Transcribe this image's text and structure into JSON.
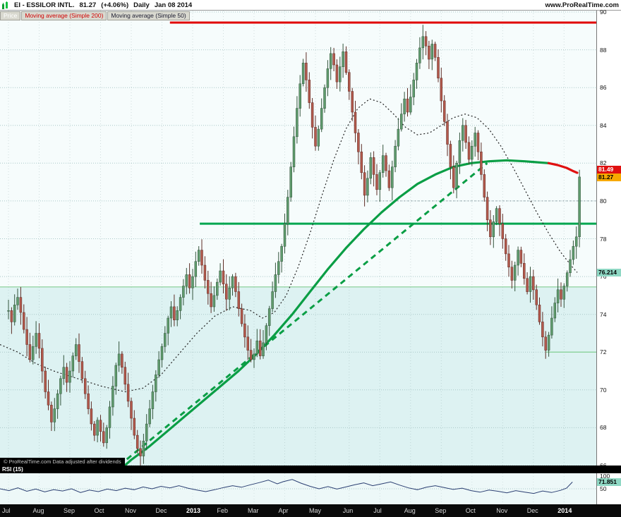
{
  "header": {
    "symbol": "EI - ESSILOR INTL.",
    "price": "81.27",
    "change": "(+4.06%)",
    "timeframe": "Daily",
    "date": "Jan 08 2014",
    "site": "www.ProRealTime.com"
  },
  "legend": {
    "price_label": "Price",
    "ma200_label": "Moving average (Simple 200)",
    "ma50_label": "Moving average (Simple 50)"
  },
  "footer_note": "© ProRealTime.com Data adjusted after dividends",
  "colors": {
    "candle_up": "#5f9b6d",
    "candle_up_stroke": "#33543c",
    "candle_down": "#b2594c",
    "candle_down_stroke": "#5e2d26",
    "ma200_green": "#0a9e45",
    "ma200_red": "#e01010",
    "ma50": "#222222",
    "trend": "#0a9e45",
    "rsi_line": "#2b3f72",
    "plot_bg": "#f6fcfc",
    "zone_bg": "#ddf2f2",
    "grid": "#aac8c8"
  },
  "chart_data": {
    "type": "candlestick",
    "title": "EI - ESSILOR INTL. Daily",
    "y_axis": {
      "min": 66,
      "max": 90,
      "step": 2
    },
    "x_labels": [
      {
        "label": "Jul",
        "i": 0
      },
      {
        "label": "Aug",
        "i": 10
      },
      {
        "label": "Sep",
        "i": 20
      },
      {
        "label": "Oct",
        "i": 30
      },
      {
        "label": "Nov",
        "i": 40
      },
      {
        "label": "Dec",
        "i": 50
      },
      {
        "label": "2013",
        "i": 60
      },
      {
        "label": "Feb",
        "i": 70
      },
      {
        "label": "Mar",
        "i": 80
      },
      {
        "label": "Apr",
        "i": 90
      },
      {
        "label": "May",
        "i": 100
      },
      {
        "label": "Jun",
        "i": 111
      },
      {
        "label": "Jul",
        "i": 121
      },
      {
        "label": "Aug",
        "i": 131
      },
      {
        "label": "Sep",
        "i": 141
      },
      {
        "label": "Oct",
        "i": 151
      },
      {
        "label": "Nov",
        "i": 161
      },
      {
        "label": "Dec",
        "i": 171
      },
      {
        "label": "2014",
        "i": 181
      }
    ],
    "closes": [
      74.2,
      73.6,
      74.5,
      74.9,
      74.1,
      73.2,
      72.4,
      71.6,
      72.3,
      73.0,
      72.2,
      71.0,
      69.9,
      69.2,
      68.3,
      69.0,
      69.8,
      70.6,
      71.2,
      70.4,
      71.0,
      71.8,
      72.4,
      71.5,
      70.6,
      69.8,
      69.0,
      68.2,
      67.6,
      68.4,
      67.8,
      67.2,
      68.0,
      69.1,
      70.2,
      71.3,
      71.9,
      71.2,
      70.3,
      69.4,
      68.5,
      67.6,
      66.9,
      66.5,
      67.3,
      68.2,
      69.0,
      69.9,
      70.8,
      71.6,
      72.3,
      73.0,
      73.8,
      74.4,
      73.7,
      74.2,
      74.9,
      75.5,
      76.1,
      75.4,
      76.0,
      76.8,
      77.4,
      76.6,
      75.8,
      75.1,
      74.4,
      75.0,
      75.7,
      76.3,
      75.6,
      74.8,
      75.4,
      76.0,
      75.2,
      74.3,
      73.5,
      72.8,
      72.1,
      71.6,
      71.9,
      72.6,
      71.8,
      72.5,
      73.4,
      74.3,
      75.2,
      76.1,
      76.8,
      77.6,
      78.8,
      80.2,
      81.8,
      83.4,
      84.9,
      86.2,
      87.3,
      86.4,
      85.2,
      83.9,
      82.9,
      83.8,
      84.9,
      86.0,
      87.0,
      87.8,
      87.2,
      86.3,
      87.1,
      87.9,
      86.8,
      85.8,
      84.7,
      83.6,
      82.6,
      81.5,
      80.3,
      81.2,
      82.3,
      81.4,
      80.6,
      81.5,
      82.4,
      81.6,
      80.7,
      81.8,
      82.9,
      83.8,
      84.6,
      85.4,
      84.7,
      85.5,
      86.4,
      87.3,
      88.1,
      88.7,
      88.2,
      87.5,
      88.3,
      87.6,
      86.5,
      85.3,
      84.2,
      83.0,
      81.8,
      80.7,
      82.0,
      83.2,
      84.0,
      83.1,
      82.2,
      82.9,
      83.6,
      82.6,
      81.4,
      80.2,
      79.0,
      78.1,
      78.9,
      79.6,
      78.8,
      78.0,
      77.2,
      76.5,
      75.8,
      76.6,
      77.4,
      76.7,
      75.9,
      75.2,
      76.0,
      75.3,
      74.5,
      73.6,
      72.8,
      72.1,
      72.9,
      73.8,
      74.6,
      75.3,
      74.8,
      75.5,
      76.2,
      76.9,
      77.6,
      78.1,
      81.27
    ],
    "ma200": {
      "red_from": 0.92,
      "points": [
        [
          0.195,
          65.6
        ],
        [
          0.22,
          66.3
        ],
        [
          0.25,
          67.0
        ],
        [
          0.28,
          67.8
        ],
        [
          0.31,
          68.6
        ],
        [
          0.34,
          69.4
        ],
        [
          0.37,
          70.2
        ],
        [
          0.4,
          71.0
        ],
        [
          0.43,
          71.9
        ],
        [
          0.46,
          72.9
        ],
        [
          0.49,
          74.0
        ],
        [
          0.52,
          75.2
        ],
        [
          0.55,
          76.4
        ],
        [
          0.58,
          77.5
        ],
        [
          0.61,
          78.5
        ],
        [
          0.64,
          79.4
        ],
        [
          0.67,
          80.2
        ],
        [
          0.7,
          80.9
        ],
        [
          0.73,
          81.4
        ],
        [
          0.76,
          81.8
        ],
        [
          0.79,
          82.0
        ],
        [
          0.82,
          82.1
        ],
        [
          0.85,
          82.15
        ],
        [
          0.88,
          82.1
        ],
        [
          0.9,
          82.05
        ],
        [
          0.92,
          82.0
        ],
        [
          0.935,
          81.9
        ],
        [
          0.95,
          81.75
        ],
        [
          0.96,
          81.6
        ],
        [
          0.968,
          81.49
        ]
      ]
    },
    "ma50": {
      "points": [
        [
          0.0,
          72.4
        ],
        [
          0.03,
          72.0
        ],
        [
          0.06,
          71.4
        ],
        [
          0.09,
          71.0
        ],
        [
          0.13,
          70.6
        ],
        [
          0.17,
          70.2
        ],
        [
          0.21,
          69.9
        ],
        [
          0.24,
          70.1
        ],
        [
          0.27,
          70.8
        ],
        [
          0.3,
          71.9
        ],
        [
          0.33,
          73.0
        ],
        [
          0.36,
          73.9
        ],
        [
          0.39,
          74.4
        ],
        [
          0.42,
          74.2
        ],
        [
          0.44,
          73.8
        ],
        [
          0.46,
          74.1
        ],
        [
          0.48,
          75.0
        ],
        [
          0.5,
          76.5
        ],
        [
          0.52,
          78.3
        ],
        [
          0.54,
          80.3
        ],
        [
          0.56,
          82.2
        ],
        [
          0.58,
          83.8
        ],
        [
          0.6,
          84.9
        ],
        [
          0.62,
          85.4
        ],
        [
          0.64,
          85.2
        ],
        [
          0.66,
          84.6
        ],
        [
          0.68,
          83.9
        ],
        [
          0.7,
          83.5
        ],
        [
          0.72,
          83.6
        ],
        [
          0.74,
          84.0
        ],
        [
          0.76,
          84.4
        ],
        [
          0.78,
          84.6
        ],
        [
          0.8,
          84.4
        ],
        [
          0.82,
          83.8
        ],
        [
          0.84,
          82.9
        ],
        [
          0.86,
          81.8
        ],
        [
          0.88,
          80.6
        ],
        [
          0.9,
          79.4
        ],
        [
          0.92,
          78.3
        ],
        [
          0.94,
          77.3
        ],
        [
          0.96,
          76.5
        ],
        [
          0.968,
          76.214
        ]
      ]
    },
    "lines": [
      {
        "level": 89.44,
        "from": 0.285,
        "color": "#e00000",
        "width": 3
      },
      {
        "level": 78.8,
        "from": 0.335,
        "color": "#00a650",
        "width": 3
      },
      {
        "level": 75.45,
        "from": 0,
        "color": "#9fd8ac",
        "width": 1.5
      },
      {
        "level": 72.0,
        "from": 0.915,
        "color": "#8fd4a0",
        "width": 1.5
      },
      {
        "level": 80.0,
        "from": 0.63,
        "color": "#8899a0",
        "width": 1,
        "dash": "2,3"
      }
    ],
    "trendline": {
      "x1": 0.2,
      "p1": 66.0,
      "x2": 0.817,
      "p2": 82.0,
      "color": "#0a9e45",
      "width": 3,
      "dash": "8,6"
    },
    "axis_tags": [
      {
        "text": "81.49",
        "price": 81.49,
        "bg": "#e01010",
        "fg": "#ffffff"
      },
      {
        "text": "81.27",
        "price": 81.27,
        "bg": "#f7a900",
        "fg": "#000000"
      },
      {
        "text": "76.214",
        "price": 76.214,
        "bg": "#8fd8c4",
        "fg": "#000000"
      }
    ],
    "rsi": {
      "label": "RSI (15)",
      "value": "71.851",
      "axis_ticks": [
        {
          "text": "100",
          "v": 100
        },
        {
          "text": "50",
          "v": 50
        }
      ],
      "points": [
        [
          0,
          50
        ],
        [
          0.015,
          44
        ],
        [
          0.03,
          53
        ],
        [
          0.045,
          42
        ],
        [
          0.06,
          49
        ],
        [
          0.075,
          40
        ],
        [
          0.09,
          47
        ],
        [
          0.105,
          43
        ],
        [
          0.12,
          50
        ],
        [
          0.135,
          38
        ],
        [
          0.15,
          46
        ],
        [
          0.165,
          41
        ],
        [
          0.18,
          49
        ],
        [
          0.195,
          44
        ],
        [
          0.21,
          52
        ],
        [
          0.225,
          47
        ],
        [
          0.24,
          56
        ],
        [
          0.255,
          50
        ],
        [
          0.27,
          58
        ],
        [
          0.285,
          53
        ],
        [
          0.3,
          60
        ],
        [
          0.315,
          52
        ],
        [
          0.33,
          46
        ],
        [
          0.345,
          41
        ],
        [
          0.36,
          47
        ],
        [
          0.375,
          54
        ],
        [
          0.39,
          60
        ],
        [
          0.405,
          55
        ],
        [
          0.42,
          63
        ],
        [
          0.435,
          70
        ],
        [
          0.45,
          78
        ],
        [
          0.465,
          66
        ],
        [
          0.475,
          73
        ],
        [
          0.49,
          80
        ],
        [
          0.505,
          68
        ],
        [
          0.52,
          58
        ],
        [
          0.535,
          50
        ],
        [
          0.55,
          57
        ],
        [
          0.565,
          49
        ],
        [
          0.58,
          56
        ],
        [
          0.595,
          63
        ],
        [
          0.61,
          69
        ],
        [
          0.625,
          60
        ],
        [
          0.64,
          66
        ],
        [
          0.655,
          72
        ],
        [
          0.67,
          62
        ],
        [
          0.685,
          53
        ],
        [
          0.7,
          47
        ],
        [
          0.715,
          55
        ],
        [
          0.73,
          60
        ],
        [
          0.745,
          54
        ],
        [
          0.76,
          48
        ],
        [
          0.775,
          52
        ],
        [
          0.79,
          44
        ],
        [
          0.805,
          39
        ],
        [
          0.82,
          46
        ],
        [
          0.835,
          42
        ],
        [
          0.85,
          37
        ],
        [
          0.865,
          44
        ],
        [
          0.88,
          39
        ],
        [
          0.895,
          35
        ],
        [
          0.91,
          43
        ],
        [
          0.925,
          38
        ],
        [
          0.94,
          45
        ],
        [
          0.95,
          52
        ],
        [
          0.96,
          71.851
        ]
      ]
    }
  }
}
